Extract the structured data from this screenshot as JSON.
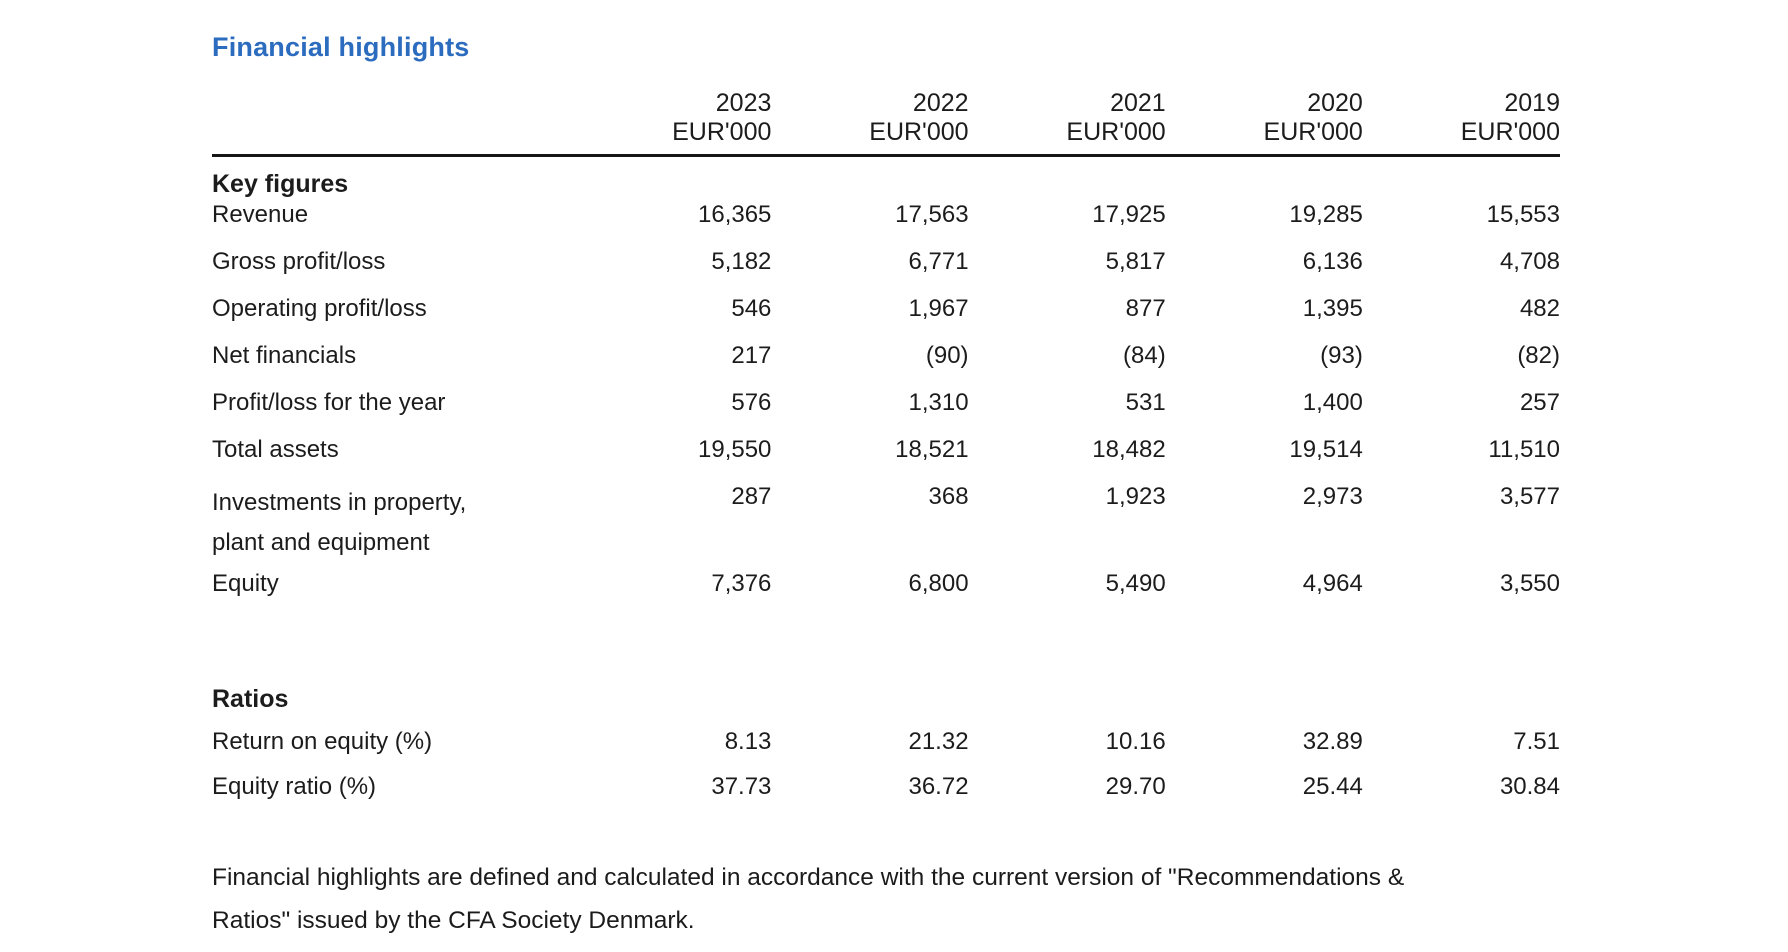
{
  "page": {
    "title": "Financial highlights"
  },
  "table": {
    "columns": [
      {
        "year": "2023",
        "unit": "EUR'000"
      },
      {
        "year": "2022",
        "unit": "EUR'000"
      },
      {
        "year": "2021",
        "unit": "EUR'000"
      },
      {
        "year": "2020",
        "unit": "EUR'000"
      },
      {
        "year": "2019",
        "unit": "EUR'000"
      }
    ],
    "sections": [
      {
        "heading": "Key figures",
        "rows": [
          {
            "label": "Revenue",
            "values": [
              "16,365",
              "17,563",
              "17,925",
              "19,285",
              "15,553"
            ]
          },
          {
            "label": "Gross profit/loss",
            "values": [
              "5,182",
              "6,771",
              "5,817",
              "6,136",
              "4,708"
            ]
          },
          {
            "label": "Operating profit/loss",
            "values": [
              "546",
              "1,967",
              "877",
              "1,395",
              "482"
            ]
          },
          {
            "label": "Net financials",
            "values": [
              "217",
              "(90)",
              "(84)",
              "(93)",
              "(82)"
            ]
          },
          {
            "label": "Profit/loss for the year",
            "values": [
              "576",
              "1,310",
              "531",
              "1,400",
              "257"
            ]
          },
          {
            "label": "Total assets",
            "values": [
              "19,550",
              "18,521",
              "18,482",
              "19,514",
              "11,510"
            ]
          },
          {
            "label": "Investments in property, plant and equipment",
            "values": [
              "287",
              "368",
              "1,923",
              "2,973",
              "3,577"
            ]
          },
          {
            "label": "Equity",
            "values": [
              "7,376",
              "6,800",
              "5,490",
              "4,964",
              "3,550"
            ]
          }
        ]
      },
      {
        "heading": "Ratios",
        "rows": [
          {
            "label": "Return on equity (%)",
            "values": [
              "8.13",
              "21.32",
              "10.16",
              "32.89",
              "7.51"
            ]
          },
          {
            "label": "Equity ratio (%)",
            "values": [
              "37.73",
              "36.72",
              "29.70",
              "25.44",
              "30.84"
            ]
          }
        ]
      }
    ]
  },
  "footnote": {
    "line1": "Financial highlights are defined and calculated in accordance with the current version of \"Recommendations &",
    "line2": "Ratios\" issued by the CFA Society Denmark."
  },
  "colors": {
    "title_blue": "#2b6cbf",
    "text": "#1c1c1c",
    "rule": "#161616"
  }
}
